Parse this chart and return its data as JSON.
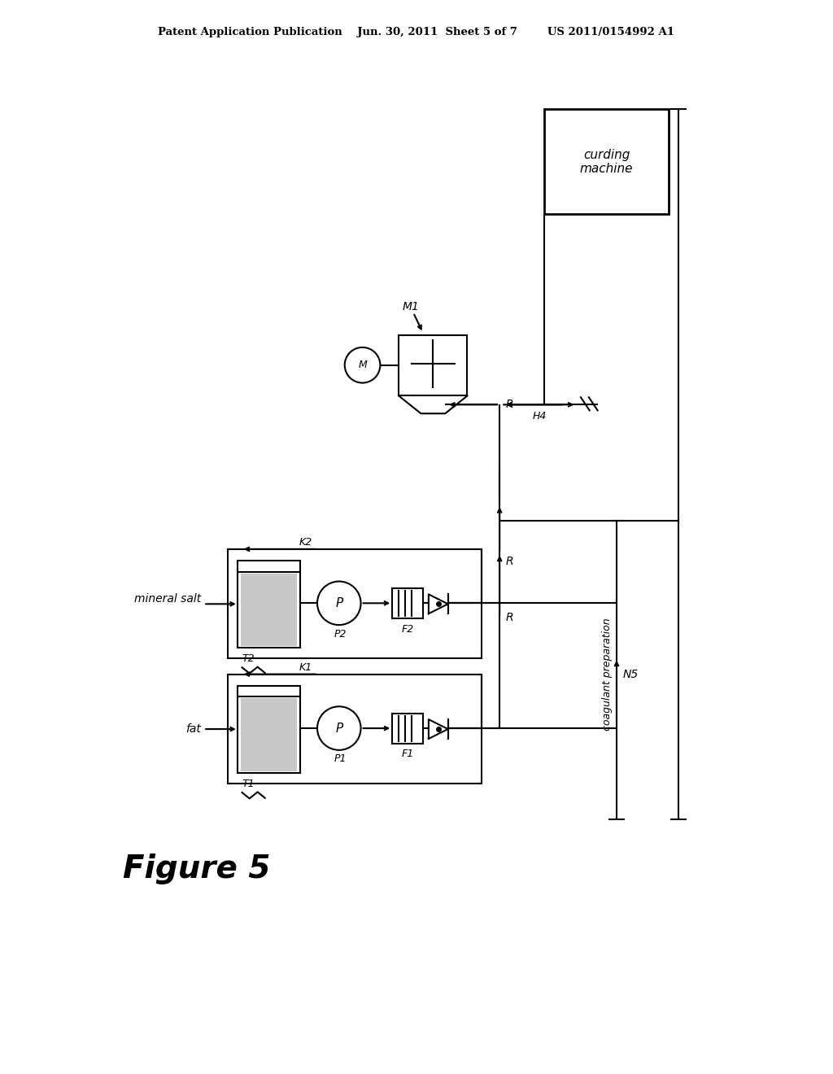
{
  "bg_color": "#ffffff",
  "header": "Patent Application Publication    Jun. 30, 2011  Sheet 5 of 7        US 2011/0154992 A1",
  "figure_label": "Figure 5",
  "lc": "#000000",
  "fat_label": "fat",
  "mineral_salt_label": "mineral salt",
  "T1": "T1",
  "T2": "T2",
  "P1": "P1",
  "P2": "P2",
  "F1": "F1",
  "F2": "F2",
  "K1": "K1",
  "K2": "K2",
  "M1": "M1",
  "H4": "H4",
  "R": "R",
  "N5": "N5",
  "coag": "coagulant preparation",
  "curding": "curding\nmachine",
  "Motor": "M"
}
